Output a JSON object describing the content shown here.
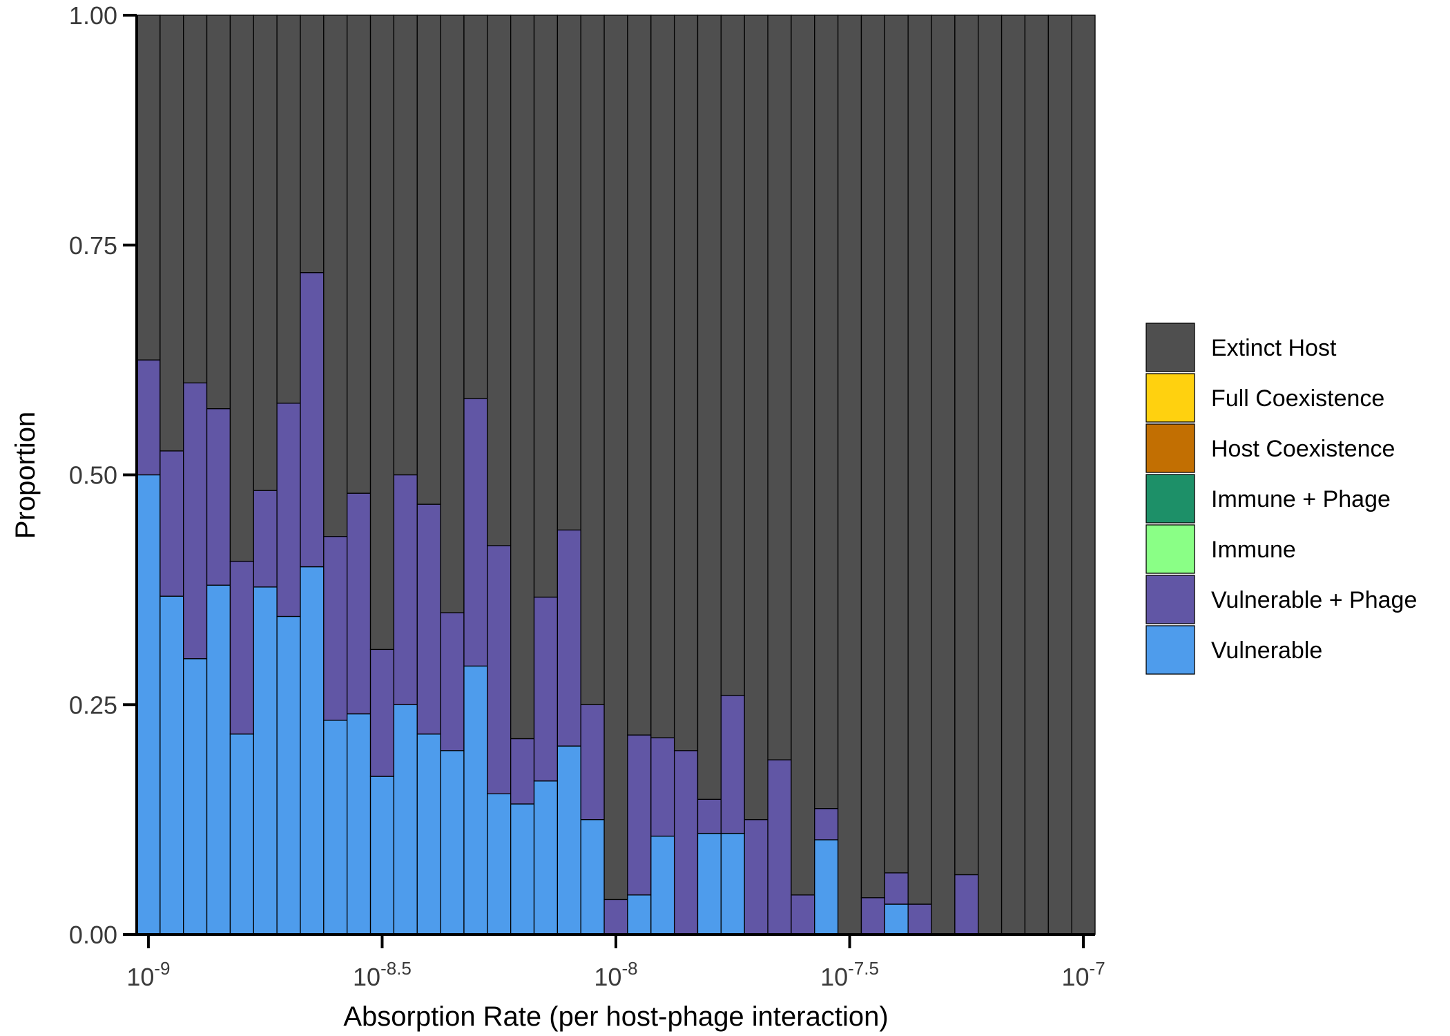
{
  "chart_data": {
    "type": "bar",
    "stacked": true,
    "xlabel": "Absorption Rate (per host-phage interaction)",
    "ylabel": "Proportion",
    "x_scale": "log10",
    "xlim": [
      1e-09,
      1e-07
    ],
    "ylim": [
      0,
      1
    ],
    "x_ticks": [
      {
        "value": 1e-09,
        "base": "10",
        "exp": "-9"
      },
      {
        "value": 3.1623e-09,
        "base": "10",
        "exp": "-8.5"
      },
      {
        "value": 1e-08,
        "base": "10",
        "exp": "-8"
      },
      {
        "value": 3.1623e-08,
        "base": "10",
        "exp": "-7.5"
      },
      {
        "value": 1e-07,
        "base": "10",
        "exp": "-7"
      }
    ],
    "y_ticks": [
      "0.00",
      "0.25",
      "0.50",
      "0.75",
      "1.00"
    ],
    "grid": false,
    "legend_position": "right",
    "legend": [
      {
        "name": "Extinct Host",
        "color": "#4f4f4f"
      },
      {
        "name": "Full Coexistence",
        "color": "#ffd10f"
      },
      {
        "name": "Host Coexistence",
        "color": "#c26f02"
      },
      {
        "name": "Immune + Phage",
        "color": "#1d9068"
      },
      {
        "name": "Immune",
        "color": "#8aff86"
      },
      {
        "name": "Vulnerable + Phage",
        "color": "#6156a5"
      },
      {
        "name": "Vulnerable",
        "color": "#4e9cec"
      }
    ],
    "bin_width_log10": 0.05,
    "bin_centers_log10": [
      -9.0,
      -8.95,
      -8.9,
      -8.85,
      -8.8,
      -8.75,
      -8.7,
      -8.65,
      -8.6,
      -8.55,
      -8.5,
      -8.45,
      -8.4,
      -8.35,
      -8.3,
      -8.25,
      -8.2,
      -8.15,
      -8.1,
      -8.05,
      -8.0,
      -7.95,
      -7.9,
      -7.85,
      -7.8,
      -7.75,
      -7.7,
      -7.65,
      -7.6,
      -7.55,
      -7.5,
      -7.45,
      -7.4,
      -7.35,
      -7.3,
      -7.25,
      -7.2,
      -7.15,
      -7.1,
      -7.05,
      -7.0
    ],
    "series": [
      {
        "name": "Vulnerable",
        "values": [
          0.5,
          0.368,
          0.3,
          0.38,
          0.218,
          0.378,
          0.346,
          0.4,
          0.233,
          0.24,
          0.172,
          0.25,
          0.218,
          0.2,
          0.292,
          0.153,
          0.142,
          0.167,
          0.205,
          0.125,
          0,
          0.043,
          0.107,
          0,
          0.11,
          0.11,
          0,
          0,
          0,
          0.103,
          0,
          0,
          0.033,
          0,
          0,
          0,
          0,
          0,
          0,
          0,
          0
        ]
      },
      {
        "name": "Vulnerable + Phage",
        "values": [
          0.125,
          0.158,
          0.3,
          0.192,
          0.188,
          0.105,
          0.232,
          0.32,
          0.2,
          0.24,
          0.138,
          0.25,
          0.25,
          0.15,
          0.291,
          0.27,
          0.071,
          0.2,
          0.235,
          0.125,
          0.038,
          0.174,
          0.107,
          0.2,
          0.037,
          0.15,
          0.125,
          0.19,
          0.043,
          0.034,
          0,
          0.04,
          0.034,
          0.033,
          0,
          0.065,
          0,
          0,
          0,
          0,
          0
        ]
      },
      {
        "name": "Extinct Host",
        "values": [
          0.375,
          0.474,
          0.4,
          0.428,
          0.594,
          0.517,
          0.422,
          0.28,
          0.567,
          0.52,
          0.69,
          0.5,
          0.532,
          0.65,
          0.417,
          0.577,
          0.787,
          0.633,
          0.56,
          0.75,
          0.962,
          0.783,
          0.786,
          0.8,
          0.853,
          0.74,
          0.875,
          0.81,
          0.957,
          0.863,
          1,
          0.96,
          0.933,
          0.967,
          1,
          0.935,
          1,
          1,
          1,
          1,
          1
        ]
      }
    ]
  }
}
